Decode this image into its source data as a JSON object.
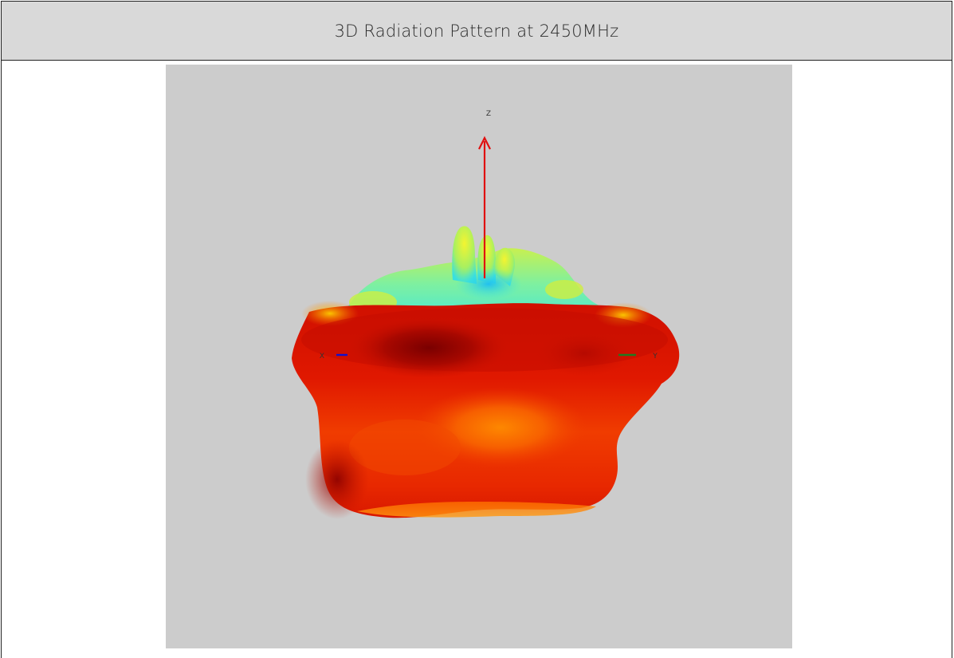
{
  "title": "3D Radiation Pattern at 2450MHz",
  "axes": {
    "z_label": "Z",
    "x_label": "X",
    "y_label": "Y",
    "z_color": "#e01010",
    "x_color": "#1010d0",
    "y_color": "#1f7a1f"
  },
  "colors": {
    "panel_background": "#cccccc",
    "title_background": "#d9d9d9",
    "pattern_low": "#30e0e8",
    "pattern_mid": "#e8f020",
    "pattern_high": "#e01800",
    "pattern_peak": "#800000"
  }
}
